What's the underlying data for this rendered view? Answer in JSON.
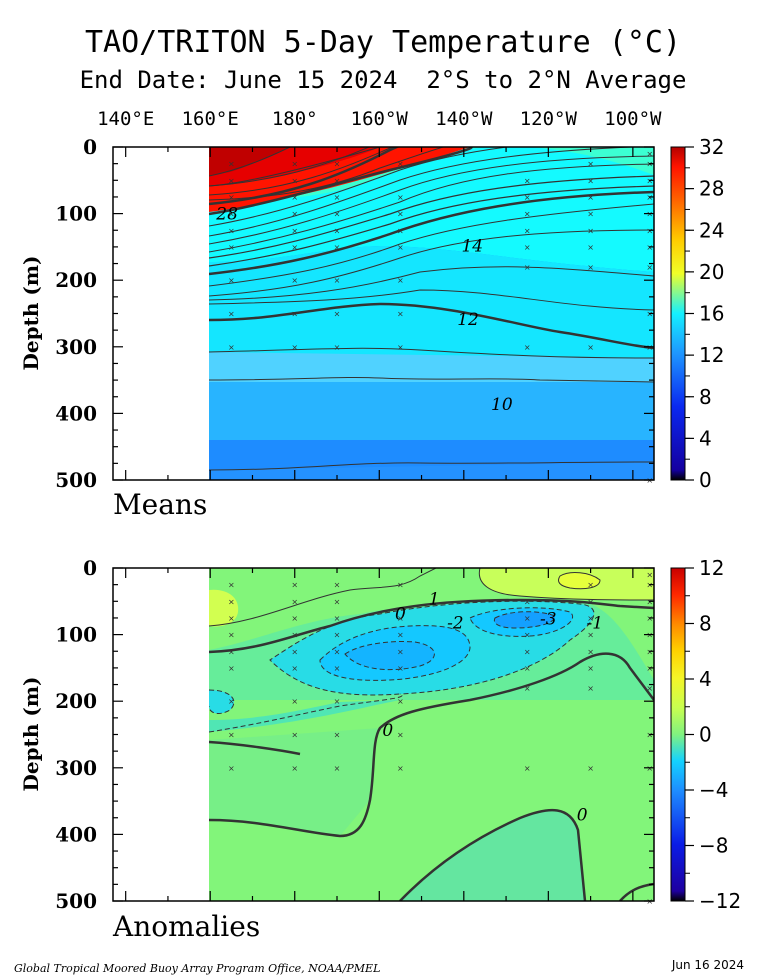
{
  "title": "TAO/TRITON 5-Day Temperature (°C)",
  "subtitle": "End Date: June 15 2024  2°S to 2°N Average",
  "footer_left": "Global Tropical Moored Buoy Array Program Office, NOAA/PMEL",
  "footer_right": "Jun 16 2024",
  "colors": {
    "stops": [
      [
        -12,
        "#000000"
      ],
      [
        -11,
        "#1e00a0"
      ],
      [
        -8,
        "#0a1ce6"
      ],
      [
        -4,
        "#1e8cff"
      ],
      [
        -2,
        "#14d2ff"
      ],
      [
        0,
        "#80f280"
      ],
      [
        2,
        "#c8ff50"
      ],
      [
        4,
        "#f5f528"
      ],
      [
        6,
        "#ffd200"
      ],
      [
        8,
        "#ff8c00"
      ],
      [
        10,
        "#ff2800"
      ],
      [
        12,
        "#c80000"
      ]
    ]
  },
  "chart_data": [
    {
      "type": "heatmap",
      "panel_label": "Means",
      "ylabel": "Depth (m)",
      "x_tick_labels": [
        "140°E",
        "160°E",
        "180°",
        "160°W",
        "140°W",
        "120°W",
        "100°W"
      ],
      "x_ticks_lon": [
        140,
        160,
        180,
        200,
        220,
        240,
        260
      ],
      "y_ticks": [
        0,
        100,
        200,
        300,
        400,
        500
      ],
      "ylim": [
        0,
        500
      ],
      "xlim_lon": [
        137,
        265
      ],
      "data_start_lon": 160,
      "colorbar_ticks": [
        0,
        4,
        8,
        12,
        16,
        20,
        24,
        28,
        32
      ],
      "colorbar_range": [
        0,
        32
      ],
      "contour_labels": [
        {
          "text": "28",
          "lon": 164,
          "depth": 100
        },
        {
          "text": "14",
          "lon": 222,
          "depth": 148
        },
        {
          "text": "12",
          "lon": 221,
          "depth": 258
        },
        {
          "text": "10",
          "lon": 229,
          "depth": 386
        }
      ],
      "sensors": [
        {
          "lon": 165,
          "depths": [
            25,
            50,
            75,
            100,
            125,
            150,
            200,
            250,
            300
          ]
        },
        {
          "lon": 180,
          "depths": [
            25,
            50,
            75,
            100,
            125,
            150,
            200,
            250,
            300
          ]
        },
        {
          "lon": 190,
          "depths": [
            25,
            50,
            75,
            100,
            125,
            150,
            200,
            250,
            300
          ]
        },
        {
          "lon": 205,
          "depths": [
            25,
            75,
            100,
            125,
            150,
            200,
            250,
            300
          ]
        },
        {
          "lon": 235,
          "depths": [
            50,
            75,
            100,
            125,
            150,
            180,
            300
          ]
        },
        {
          "lon": 250,
          "depths": [
            25,
            50,
            75,
            100,
            125,
            150,
            180,
            300
          ]
        },
        {
          "lon": 264,
          "depths": [
            10,
            25,
            50,
            75,
            100,
            125,
            150,
            180,
            250,
            300,
            500
          ]
        }
      ]
    },
    {
      "type": "heatmap",
      "panel_label": "Anomalies",
      "ylabel": "Depth (m)",
      "x_ticks_lon": [
        140,
        160,
        180,
        200,
        220,
        240,
        260
      ],
      "y_ticks": [
        0,
        100,
        200,
        300,
        400,
        500
      ],
      "ylim": [
        0,
        500
      ],
      "xlim_lon": [
        137,
        265
      ],
      "data_start_lon": 160,
      "colorbar_ticks": [
        -12,
        -8,
        -4,
        0,
        4,
        8,
        12
      ],
      "colorbar_range": [
        -12,
        12
      ],
      "contour_labels": [
        {
          "text": "1",
          "lon": 213,
          "depth": 46
        },
        {
          "text": "0",
          "lon": 205,
          "depth": 68
        },
        {
          "text": "-2",
          "lon": 218,
          "depth": 82
        },
        {
          "text": "-3",
          "lon": 240,
          "depth": 76
        },
        {
          "text": "-1",
          "lon": 251,
          "depth": 82
        },
        {
          "text": "0",
          "lon": 202,
          "depth": 243
        },
        {
          "text": "0",
          "lon": 248,
          "depth": 370
        }
      ],
      "sensors": [
        {
          "lon": 165,
          "depths": [
            25,
            50,
            75,
            100,
            125,
            150,
            200,
            250,
            300
          ]
        },
        {
          "lon": 180,
          "depths": [
            25,
            50,
            75,
            100,
            125,
            150,
            200,
            250,
            300
          ]
        },
        {
          "lon": 190,
          "depths": [
            25,
            50,
            75,
            100,
            125,
            150,
            200,
            250,
            300
          ]
        },
        {
          "lon": 205,
          "depths": [
            25,
            75,
            100,
            125,
            150,
            200,
            250,
            300
          ]
        },
        {
          "lon": 235,
          "depths": [
            50,
            75,
            100,
            125,
            150,
            180,
            300
          ]
        },
        {
          "lon": 250,
          "depths": [
            25,
            50,
            75,
            100,
            125,
            150,
            180,
            300
          ]
        },
        {
          "lon": 264,
          "depths": [
            10,
            25,
            50,
            75,
            100,
            125,
            150,
            180,
            250,
            300,
            500
          ]
        }
      ]
    }
  ]
}
